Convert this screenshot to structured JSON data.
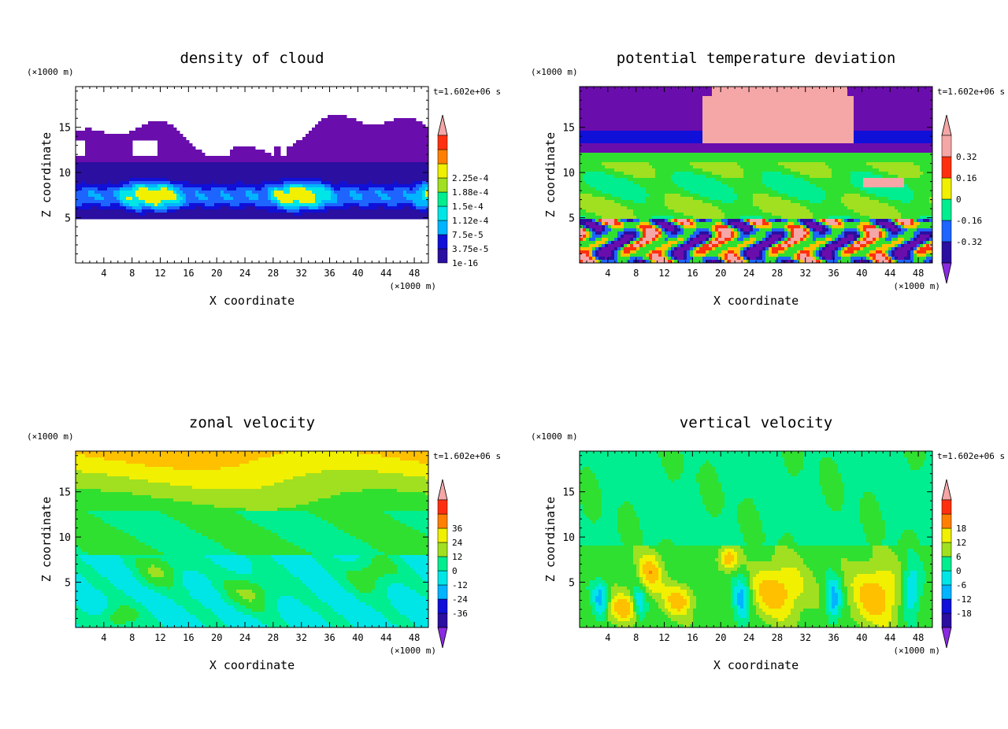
{
  "chart_data": [
    {
      "type": "heatmap",
      "title": "density of cloud",
      "xlabel": "X coordinate",
      "ylabel": "Z coordinate",
      "x_unit": "(×1000 m)",
      "y_unit": "(×1000 m)",
      "time": "t=1.602e+06 s",
      "x_ticks": [
        "4",
        "8",
        "12",
        "16",
        "20",
        "24",
        "28",
        "32",
        "36",
        "40",
        "44",
        "48"
      ],
      "y_ticks": [
        "5",
        "10",
        "15"
      ],
      "xlim": [
        0,
        50
      ],
      "ylim": [
        0,
        19.5
      ],
      "colorbar": [
        "1e-16",
        "3.75e-5",
        "7.5e-5",
        "1.12e-4",
        "1.5e-4",
        "1.88e-4",
        "2.25e-4"
      ],
      "colorbar_has_lower_arrow": false,
      "field": "cloud"
    },
    {
      "type": "heatmap",
      "title": "potential temperature deviation",
      "xlabel": "X coordinate",
      "ylabel": "Z coordinate",
      "x_unit": "(×1000 m)",
      "y_unit": "(×1000 m)",
      "time": "t=1.602e+06 s",
      "x_ticks": [
        "4",
        "8",
        "12",
        "16",
        "20",
        "24",
        "28",
        "32",
        "36",
        "40",
        "44",
        "48"
      ],
      "y_ticks": [
        "5",
        "10",
        "15"
      ],
      "xlim": [
        0,
        50
      ],
      "ylim": [
        0,
        19.5
      ],
      "colorbar": [
        "-0.32",
        "-0.16",
        "0",
        "0.16",
        "0.32"
      ],
      "colorbar_has_lower_arrow": true,
      "field": "theta"
    },
    {
      "type": "heatmap",
      "title": "zonal velocity",
      "xlabel": "X coordinate",
      "ylabel": "Z coordinate",
      "x_unit": "(×1000 m)",
      "y_unit": "(×1000 m)",
      "time": "t=1.602e+06 s",
      "x_ticks": [
        "4",
        "8",
        "12",
        "16",
        "20",
        "24",
        "28",
        "32",
        "36",
        "40",
        "44",
        "48"
      ],
      "y_ticks": [
        "5",
        "10",
        "15"
      ],
      "xlim": [
        0,
        50
      ],
      "ylim": [
        0,
        19.5
      ],
      "colorbar": [
        "-36",
        "-24",
        "-12",
        "0",
        "12",
        "24",
        "36"
      ],
      "colorbar_has_lower_arrow": true,
      "field": "u"
    },
    {
      "type": "heatmap",
      "title": "vertical velocity",
      "xlabel": "X coordinate",
      "ylabel": "Z coordinate",
      "x_unit": "(×1000 m)",
      "y_unit": "(×1000 m)",
      "time": "t=1.602e+06 s",
      "x_ticks": [
        "4",
        "8",
        "12",
        "16",
        "20",
        "24",
        "28",
        "32",
        "36",
        "40",
        "44",
        "48"
      ],
      "y_ticks": [
        "5",
        "10",
        "15"
      ],
      "xlim": [
        0,
        50
      ],
      "ylim": [
        0,
        19.5
      ],
      "colorbar": [
        "-18",
        "-12",
        "-6",
        "0",
        "6",
        "12",
        "18"
      ],
      "colorbar_has_lower_arrow": true,
      "field": "w"
    }
  ],
  "palette": [
    "#6a0dad",
    "#2a0fa0",
    "#1010d8",
    "#1e64ff",
    "#00b4ff",
    "#00e6e6",
    "#00ee90",
    "#30e030",
    "#a0e020",
    "#f0f000",
    "#ffc000",
    "#ff8000",
    "#ff3010",
    "#d01010",
    "#f5a6a6"
  ]
}
